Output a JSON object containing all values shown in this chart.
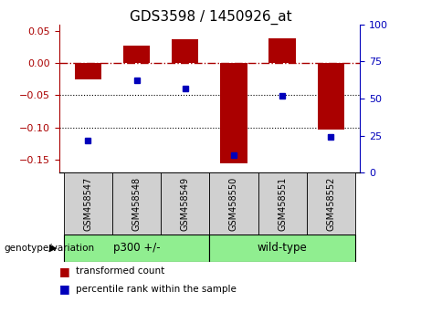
{
  "title": "GDS3598 / 1450926_at",
  "samples": [
    "GSM458547",
    "GSM458548",
    "GSM458549",
    "GSM458550",
    "GSM458551",
    "GSM458552"
  ],
  "red_values": [
    -0.025,
    0.027,
    0.037,
    -0.155,
    0.038,
    -0.103
  ],
  "blue_values_pct": [
    22,
    62,
    57,
    12,
    52,
    24
  ],
  "ylim_left": [
    -0.17,
    0.06
  ],
  "ylim_right": [
    0,
    100
  ],
  "yticks_left": [
    -0.15,
    -0.1,
    -0.05,
    0.0,
    0.05
  ],
  "yticks_right": [
    0,
    25,
    50,
    75,
    100
  ],
  "red_color": "#AA0000",
  "blue_color": "#0000BB",
  "bar_width": 0.55,
  "dotted_lines": [
    -0.05,
    -0.1
  ],
  "groups_def": [
    {
      "label": "p300 +/-",
      "start": 0,
      "end": 3
    },
    {
      "label": "wild-type",
      "start": 3,
      "end": 6
    }
  ],
  "genotype_label": "genotype/variation",
  "legend_red": "transformed count",
  "legend_blue": "percentile rank within the sample",
  "title_fontsize": 11,
  "tick_fontsize": 8,
  "legend_fontsize": 7.5,
  "sample_fontsize": 7,
  "group_fontsize": 8.5
}
